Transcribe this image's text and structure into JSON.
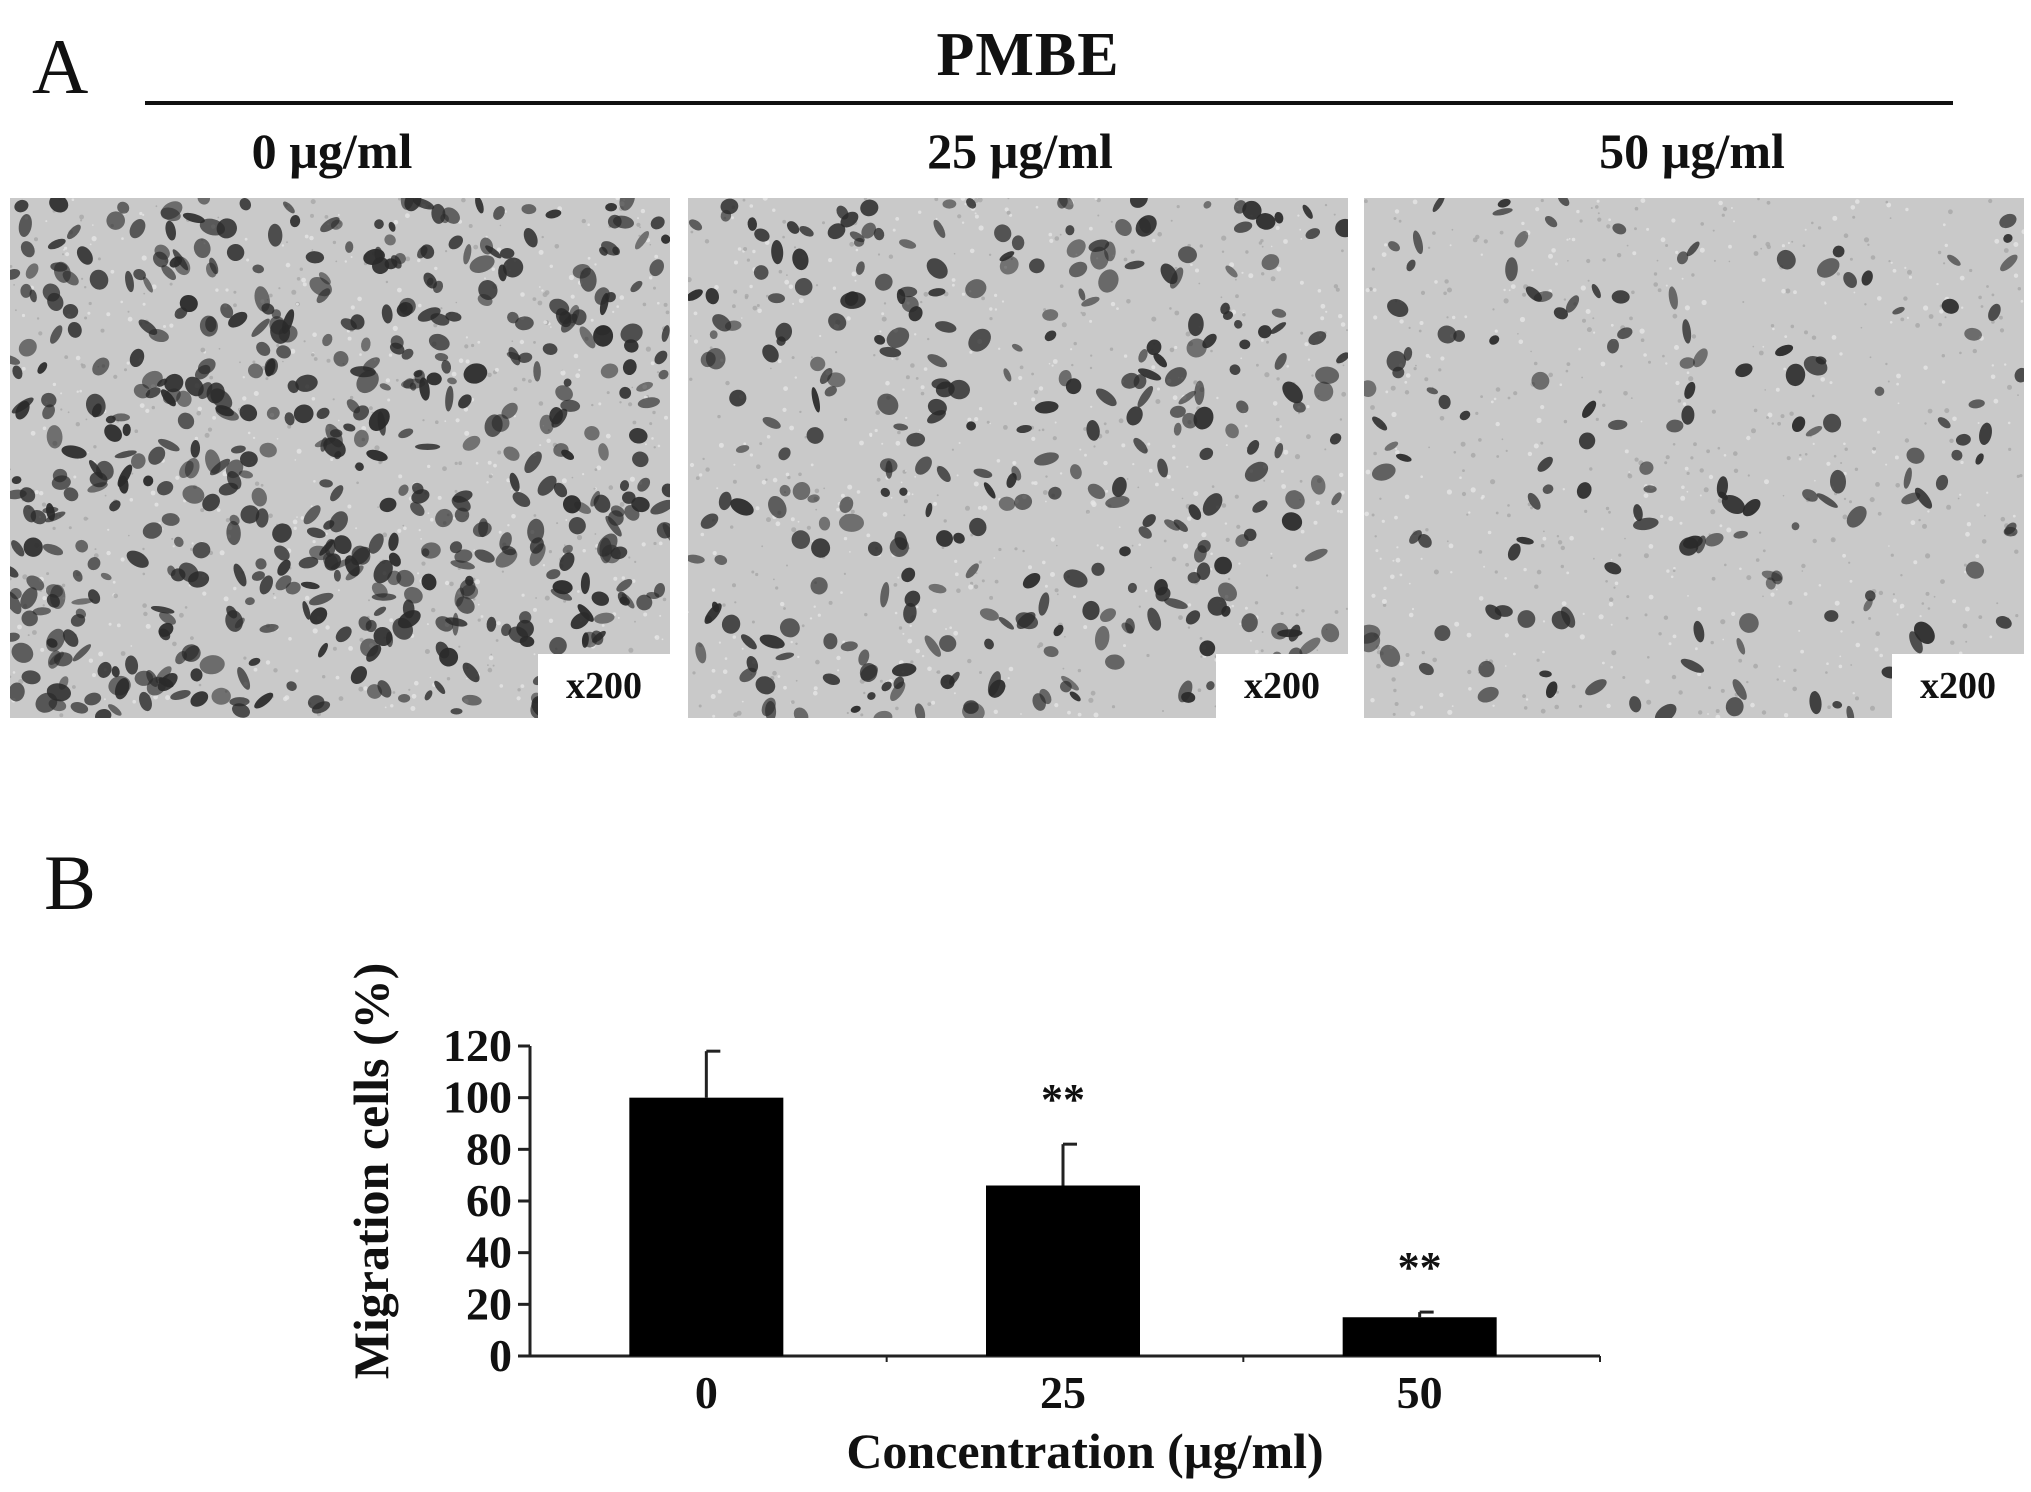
{
  "panel_a": {
    "label": "A",
    "group_title": "PMBE",
    "images": [
      {
        "concentration": "0 µg/ml",
        "magnification": "x200",
        "cell_density": 0.9
      },
      {
        "concentration": "25 µg/ml",
        "magnification": "x200",
        "cell_density": 0.5
      },
      {
        "concentration": "50 µg/ml",
        "magnification": "x200",
        "cell_density": 0.25
      }
    ]
  },
  "panel_b": {
    "label": "B"
  },
  "colors": {
    "bar": "#000000",
    "micro_background": "#c9c9c9",
    "cell": "#2a2a2a"
  },
  "chart_data": {
    "type": "bar",
    "categories": [
      "0",
      "25",
      "50"
    ],
    "values": [
      100,
      66,
      15
    ],
    "error_plus": [
      18,
      16,
      2
    ],
    "significance": [
      "",
      "**",
      "**"
    ],
    "xlabel": "Concentration (µg/ml)",
    "ylabel": "Migration cells (%)",
    "ylim": [
      0,
      120
    ],
    "yticks": [
      "0",
      "20",
      "40",
      "60",
      "80",
      "100",
      "120"
    ],
    "grid": false,
    "legend": "none"
  }
}
